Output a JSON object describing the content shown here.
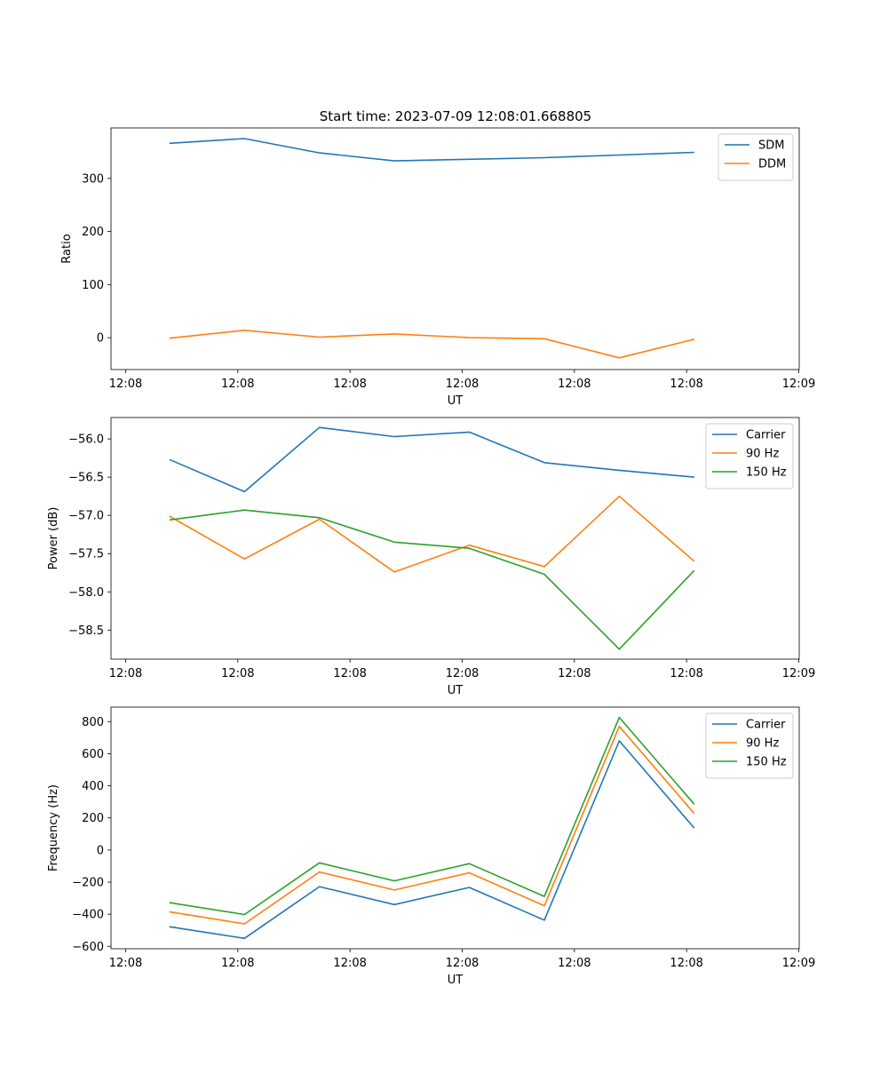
{
  "figure": {
    "title": "Start time: 2023-07-09 12:08:01.668805"
  },
  "chart_data": [
    {
      "type": "line",
      "title": "Start time: 2023-07-09 12:08:01.668805",
      "xlabel": "UT",
      "ylabel": "Ratio",
      "x_tick_labels": [
        "12:08",
        "12:08",
        "12:08",
        "12:08",
        "12:08",
        "12:08",
        "12:09"
      ],
      "y_ticks": [
        0,
        100,
        200,
        300
      ],
      "ylim": [
        -60,
        395
      ],
      "x_points": [
        1,
        2,
        3,
        4,
        5,
        6,
        7,
        8
      ],
      "xlim": [
        0.22,
        9.4
      ],
      "legend_position": "upper right",
      "series": [
        {
          "name": "SDM",
          "color": "#1f77b4",
          "values": [
            366,
            375,
            348,
            333,
            336,
            339,
            344,
            349
          ]
        },
        {
          "name": "DDM",
          "color": "#ff7f0e",
          "values": [
            -1,
            14,
            1,
            7,
            0,
            -2,
            -38,
            -3
          ]
        }
      ]
    },
    {
      "type": "line",
      "title": "",
      "xlabel": "UT",
      "ylabel": "Power (dB)",
      "x_tick_labels": [
        "12:08",
        "12:08",
        "12:08",
        "12:08",
        "12:08",
        "12:08",
        "12:09"
      ],
      "y_ticks": [
        -58.5,
        -58.0,
        -57.5,
        -57.0,
        -56.5,
        -56.0
      ],
      "ylim": [
        -58.88,
        -55.72
      ],
      "x_points": [
        1,
        2,
        3,
        4,
        5,
        6,
        7,
        8
      ],
      "xlim": [
        0.22,
        9.4
      ],
      "legend_position": "upper right",
      "series": [
        {
          "name": "Carrier",
          "color": "#1f77b4",
          "values": [
            -56.27,
            -56.69,
            -55.85,
            -55.97,
            -55.91,
            -56.31,
            -56.41,
            -56.5
          ]
        },
        {
          "name": "90 Hz",
          "color": "#ff7f0e",
          "values": [
            -57.01,
            -57.57,
            -57.05,
            -57.74,
            -57.39,
            -57.67,
            -56.75,
            -57.6
          ]
        },
        {
          "name": "150 Hz",
          "color": "#2ca02c",
          "values": [
            -57.06,
            -56.93,
            -57.03,
            -57.35,
            -57.43,
            -57.77,
            -58.75,
            -57.72
          ]
        }
      ]
    },
    {
      "type": "line",
      "title": "",
      "xlabel": "UT",
      "ylabel": "Frequency (Hz)",
      "x_tick_labels": [
        "12:08",
        "12:08",
        "12:08",
        "12:08",
        "12:08",
        "12:08",
        "12:09"
      ],
      "y_ticks": [
        -600,
        -400,
        -200,
        0,
        200,
        400,
        600,
        800
      ],
      "ylim": [
        -615,
        890
      ],
      "x_points": [
        1,
        2,
        3,
        4,
        5,
        6,
        7,
        8
      ],
      "xlim": [
        0.22,
        9.4
      ],
      "legend_position": "upper right",
      "series": [
        {
          "name": "Carrier",
          "color": "#1f77b4",
          "values": [
            -478,
            -550,
            -228,
            -340,
            -233,
            -437,
            680,
            137
          ]
        },
        {
          "name": "90 Hz",
          "color": "#ff7f0e",
          "values": [
            -385,
            -460,
            -137,
            -249,
            -142,
            -347,
            770,
            227
          ]
        },
        {
          "name": "150 Hz",
          "color": "#2ca02c",
          "values": [
            -328,
            -402,
            -80,
            -192,
            -85,
            -289,
            826,
            285
          ]
        }
      ]
    }
  ]
}
